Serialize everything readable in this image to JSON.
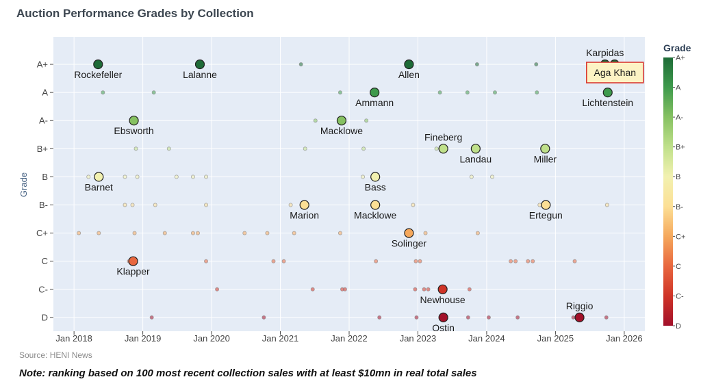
{
  "chart_data": {
    "type": "scatter",
    "title": "Auction Performance Grades by Collection",
    "xlabel": "",
    "ylabel": "Grade",
    "grades": [
      "A+",
      "A",
      "A-",
      "B+",
      "B",
      "B-",
      "C+",
      "C",
      "C-",
      "D"
    ],
    "xlim": [
      2017.7,
      2026.3
    ],
    "x_ticks": [
      {
        "value": 2018,
        "label": "Jan 2018"
      },
      {
        "value": 2019,
        "label": "Jan 2019"
      },
      {
        "value": 2020,
        "label": "Jan 2020"
      },
      {
        "value": 2021,
        "label": "Jan 2021"
      },
      {
        "value": 2022,
        "label": "Jan 2022"
      },
      {
        "value": 2023,
        "label": "Jan 2023"
      },
      {
        "value": 2024,
        "label": "Jan 2024"
      },
      {
        "value": 2025,
        "label": "Jan 2025"
      },
      {
        "value": 2026,
        "label": "Jan 2026"
      }
    ],
    "colorbar": {
      "title": "Grade",
      "ticks": [
        "A+",
        "A",
        "A-",
        "B+",
        "B",
        "B-",
        "C+",
        "C",
        "C-",
        "D"
      ],
      "colors": [
        "#1e6b37",
        "#3e9a4c",
        "#86c162",
        "#bfe08a",
        "#f2f1b0",
        "#fcdf95",
        "#f5a85c",
        "#e8673f",
        "#cf3428",
        "#a2112a"
      ]
    },
    "highlighted": [
      {
        "name": "Rockefeller",
        "date": 2018.35,
        "grade": "A+",
        "label_pos": "below"
      },
      {
        "name": "Lalanne",
        "date": 2019.83,
        "grade": "A+",
        "label_pos": "below"
      },
      {
        "name": "Allen",
        "date": 2022.87,
        "grade": "A+",
        "label_pos": "below"
      },
      {
        "name": "Karpidas",
        "date": 2025.72,
        "grade": "A+",
        "label_pos": "above"
      },
      {
        "name": "Aga Khan",
        "date": 2025.86,
        "grade": "A+",
        "label_pos": "box"
      },
      {
        "name": "Ammann",
        "date": 2022.37,
        "grade": "A",
        "label_pos": "below"
      },
      {
        "name": "Lichtenstein",
        "date": 2025.76,
        "grade": "A",
        "label_pos": "below"
      },
      {
        "name": "Ebsworth",
        "date": 2018.87,
        "grade": "A-",
        "label_pos": "below"
      },
      {
        "name": "Macklowe",
        "date": 2021.89,
        "grade": "A-",
        "label_pos": "below"
      },
      {
        "name": "Fineberg",
        "date": 2023.37,
        "grade": "B+",
        "label_pos": "above"
      },
      {
        "name": "Landau",
        "date": 2023.84,
        "grade": "B+",
        "label_pos": "below"
      },
      {
        "name": "Miller",
        "date": 2024.85,
        "grade": "B+",
        "label_pos": "below"
      },
      {
        "name": "Barnet",
        "date": 2018.36,
        "grade": "B",
        "label_pos": "below"
      },
      {
        "name": "Bass",
        "date": 2022.38,
        "grade": "B",
        "label_pos": "below"
      },
      {
        "name": "Marion",
        "date": 2021.35,
        "grade": "B-",
        "label_pos": "below"
      },
      {
        "name": "Macklowe",
        "date": 2022.38,
        "grade": "B-",
        "label_pos": "below"
      },
      {
        "name": "Ertegun",
        "date": 2024.86,
        "grade": "B-",
        "label_pos": "below"
      },
      {
        "name": "Solinger",
        "date": 2022.87,
        "grade": "C+",
        "label_pos": "below"
      },
      {
        "name": "Klapper",
        "date": 2018.86,
        "grade": "C",
        "label_pos": "below"
      },
      {
        "name": "Newhouse",
        "date": 2023.36,
        "grade": "C-",
        "label_pos": "below"
      },
      {
        "name": "Ostin",
        "date": 2023.37,
        "grade": "D",
        "label_pos": "below"
      },
      {
        "name": "Riggio",
        "date": 2025.35,
        "grade": "D",
        "label_pos": "above"
      }
    ],
    "other_sales": [
      {
        "date": 2021.3,
        "grade": "A+"
      },
      {
        "date": 2023.86,
        "grade": "A+"
      },
      {
        "date": 2024.72,
        "grade": "A+"
      },
      {
        "date": 2018.42,
        "grade": "A"
      },
      {
        "date": 2019.16,
        "grade": "A"
      },
      {
        "date": 2021.87,
        "grade": "A"
      },
      {
        "date": 2023.32,
        "grade": "A"
      },
      {
        "date": 2023.72,
        "grade": "A"
      },
      {
        "date": 2024.12,
        "grade": "A"
      },
      {
        "date": 2024.73,
        "grade": "A"
      },
      {
        "date": 2021.51,
        "grade": "A-"
      },
      {
        "date": 2022.25,
        "grade": "A-"
      },
      {
        "date": 2018.9,
        "grade": "B+"
      },
      {
        "date": 2019.38,
        "grade": "B+"
      },
      {
        "date": 2021.36,
        "grade": "B+"
      },
      {
        "date": 2022.21,
        "grade": "B+"
      },
      {
        "date": 2023.27,
        "grade": "B+"
      },
      {
        "date": 2018.21,
        "grade": "B"
      },
      {
        "date": 2018.74,
        "grade": "B"
      },
      {
        "date": 2018.92,
        "grade": "B"
      },
      {
        "date": 2019.49,
        "grade": "B"
      },
      {
        "date": 2019.73,
        "grade": "B"
      },
      {
        "date": 2019.92,
        "grade": "B"
      },
      {
        "date": 2022.2,
        "grade": "B"
      },
      {
        "date": 2023.78,
        "grade": "B"
      },
      {
        "date": 2024.08,
        "grade": "B"
      },
      {
        "date": 2018.74,
        "grade": "B-"
      },
      {
        "date": 2018.85,
        "grade": "B-"
      },
      {
        "date": 2019.18,
        "grade": "B-"
      },
      {
        "date": 2019.92,
        "grade": "B-"
      },
      {
        "date": 2021.15,
        "grade": "B-"
      },
      {
        "date": 2022.93,
        "grade": "B-"
      },
      {
        "date": 2024.77,
        "grade": "B-"
      },
      {
        "date": 2025.75,
        "grade": "B-"
      },
      {
        "date": 2018.07,
        "grade": "C+"
      },
      {
        "date": 2018.36,
        "grade": "C+"
      },
      {
        "date": 2018.88,
        "grade": "C+"
      },
      {
        "date": 2019.32,
        "grade": "C+"
      },
      {
        "date": 2019.73,
        "grade": "C+"
      },
      {
        "date": 2019.8,
        "grade": "C+"
      },
      {
        "date": 2020.48,
        "grade": "C+"
      },
      {
        "date": 2020.81,
        "grade": "C+"
      },
      {
        "date": 2021.2,
        "grade": "C+"
      },
      {
        "date": 2021.87,
        "grade": "C+"
      },
      {
        "date": 2023.11,
        "grade": "C+"
      },
      {
        "date": 2023.87,
        "grade": "C+"
      },
      {
        "date": 2018.8,
        "grade": "C"
      },
      {
        "date": 2019.92,
        "grade": "C"
      },
      {
        "date": 2020.9,
        "grade": "C"
      },
      {
        "date": 2021.05,
        "grade": "C"
      },
      {
        "date": 2022.39,
        "grade": "C"
      },
      {
        "date": 2022.97,
        "grade": "C"
      },
      {
        "date": 2023.03,
        "grade": "C"
      },
      {
        "date": 2024.35,
        "grade": "C"
      },
      {
        "date": 2024.42,
        "grade": "C"
      },
      {
        "date": 2024.6,
        "grade": "C"
      },
      {
        "date": 2024.67,
        "grade": "C"
      },
      {
        "date": 2025.28,
        "grade": "C"
      },
      {
        "date": 2020.08,
        "grade": "C-"
      },
      {
        "date": 2021.47,
        "grade": "C-"
      },
      {
        "date": 2021.9,
        "grade": "C-"
      },
      {
        "date": 2021.94,
        "grade": "C-"
      },
      {
        "date": 2022.96,
        "grade": "C-"
      },
      {
        "date": 2023.09,
        "grade": "C-"
      },
      {
        "date": 2023.15,
        "grade": "C-"
      },
      {
        "date": 2023.75,
        "grade": "C-"
      },
      {
        "date": 2019.13,
        "grade": "D"
      },
      {
        "date": 2020.76,
        "grade": "D"
      },
      {
        "date": 2022.44,
        "grade": "D"
      },
      {
        "date": 2022.98,
        "grade": "D"
      },
      {
        "date": 2023.73,
        "grade": "D"
      },
      {
        "date": 2024.03,
        "grade": "D"
      },
      {
        "date": 2024.45,
        "grade": "D"
      },
      {
        "date": 2025.26,
        "grade": "D"
      },
      {
        "date": 2025.74,
        "grade": "D"
      }
    ]
  },
  "footer": {
    "source": "Source: HENI News",
    "note": "Note: ranking based on 100 most recent collection sales with at least $10mn in real total sales"
  }
}
